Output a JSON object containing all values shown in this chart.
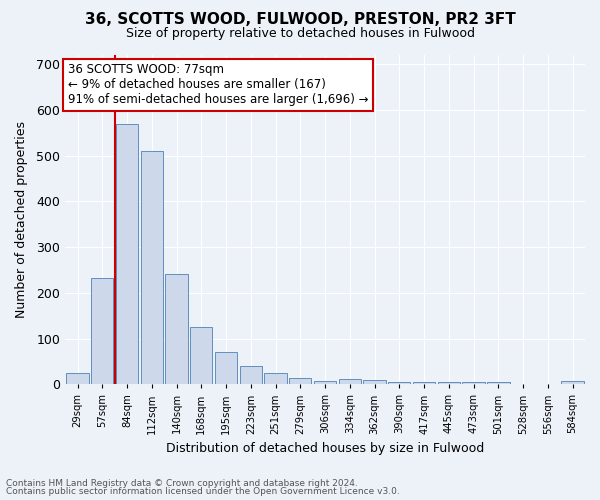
{
  "title1": "36, SCOTTS WOOD, FULWOOD, PRESTON, PR2 3FT",
  "title2": "Size of property relative to detached houses in Fulwood",
  "xlabel": "Distribution of detached houses by size in Fulwood",
  "ylabel": "Number of detached properties",
  "bar_color": "#cdd9ea",
  "bar_edge_color": "#6090c0",
  "background_color": "#edf2f9",
  "grid_color": "#ffffff",
  "annotation_box_color": "#ffffff",
  "annotation_border_color": "#cc0000",
  "red_line_color": "#cc0000",
  "categories": [
    "29sqm",
    "57sqm",
    "84sqm",
    "112sqm",
    "140sqm",
    "168sqm",
    "195sqm",
    "223sqm",
    "251sqm",
    "279sqm",
    "306sqm",
    "334sqm",
    "362sqm",
    "390sqm",
    "417sqm",
    "445sqm",
    "473sqm",
    "501sqm",
    "528sqm",
    "556sqm",
    "584sqm"
  ],
  "values": [
    25,
    232,
    570,
    510,
    242,
    125,
    70,
    40,
    25,
    14,
    8,
    11,
    10,
    5,
    5,
    5,
    5,
    5,
    0,
    0,
    7
  ],
  "annotation_text": "36 SCOTTS WOOD: 77sqm\n← 9% of detached houses are smaller (167)\n91% of semi-detached houses are larger (1,696) →",
  "footnote1": "Contains HM Land Registry data © Crown copyright and database right 2024.",
  "footnote2": "Contains public sector information licensed under the Open Government Licence v3.0.",
  "ylim": [
    0,
    720
  ],
  "yticks": [
    0,
    100,
    200,
    300,
    400,
    500,
    600,
    700
  ],
  "red_line_x": 1.5
}
